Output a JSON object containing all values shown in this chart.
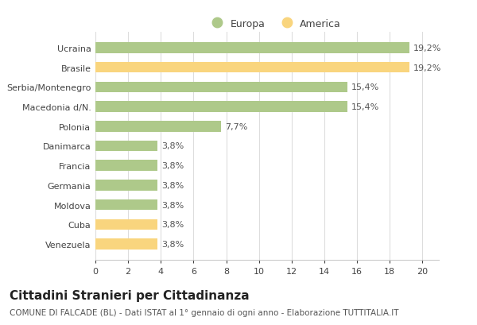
{
  "categories": [
    "Ucraina",
    "Brasile",
    "Serbia/Montenegro",
    "Macedonia d/N.",
    "Polonia",
    "Danimarca",
    "Francia",
    "Germania",
    "Moldova",
    "Cuba",
    "Venezuela"
  ],
  "values": [
    19.2,
    19.2,
    15.4,
    15.4,
    7.7,
    3.8,
    3.8,
    3.8,
    3.8,
    3.8,
    3.8
  ],
  "labels": [
    "19,2%",
    "19,2%",
    "15,4%",
    "15,4%",
    "7,7%",
    "3,8%",
    "3,8%",
    "3,8%",
    "3,8%",
    "3,8%",
    "3,8%"
  ],
  "colors": [
    "#aec98a",
    "#f9d57e",
    "#aec98a",
    "#aec98a",
    "#aec98a",
    "#aec98a",
    "#aec98a",
    "#aec98a",
    "#aec98a",
    "#f9d57e",
    "#f9d57e"
  ],
  "europa_color": "#aec98a",
  "america_color": "#f9d57e",
  "xlim": [
    0,
    21
  ],
  "xticks": [
    0,
    2,
    4,
    6,
    8,
    10,
    12,
    14,
    16,
    18,
    20
  ],
  "title": "Cittadini Stranieri per Cittadinanza",
  "subtitle": "COMUNE DI FALCADE (BL) - Dati ISTAT al 1° gennaio di ogni anno - Elaborazione TUTTITALIA.IT",
  "background_color": "#ffffff",
  "bar_height": 0.55,
  "label_fontsize": 8,
  "ytick_fontsize": 8,
  "xtick_fontsize": 8,
  "title_fontsize": 11,
  "subtitle_fontsize": 7.5
}
